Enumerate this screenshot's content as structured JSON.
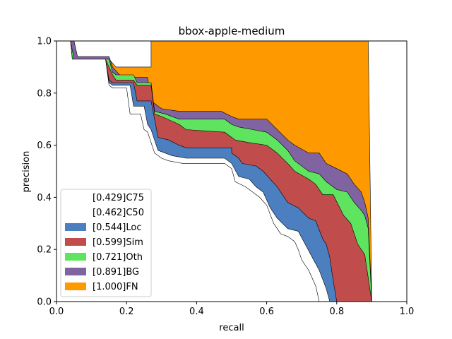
{
  "chart_data": {
    "type": "area",
    "title": "bbox-apple-medium",
    "xlabel": "recall",
    "ylabel": "precision",
    "xlim": [
      0,
      1
    ],
    "ylim": [
      0,
      1
    ],
    "xticks": [
      "0.0",
      "0.2",
      "0.4",
      "0.6",
      "0.8",
      "1.0"
    ],
    "yticks": [
      "0.0",
      "0.2",
      "0.4",
      "0.6",
      "0.8",
      "1.0"
    ],
    "grid": false,
    "legend_position": "lower-left",
    "series": [
      {
        "name": "[0.429]C75",
        "color": "#ffffff",
        "points": [
          [
            0.0,
            1.0
          ],
          [
            0.04,
            1.0
          ],
          [
            0.045,
            0.93
          ],
          [
            0.14,
            0.93
          ],
          [
            0.15,
            0.83
          ],
          [
            0.16,
            0.82
          ],
          [
            0.2,
            0.82
          ],
          [
            0.21,
            0.72
          ],
          [
            0.24,
            0.72
          ],
          [
            0.25,
            0.66
          ],
          [
            0.26,
            0.65
          ],
          [
            0.28,
            0.57
          ],
          [
            0.3,
            0.55
          ],
          [
            0.32,
            0.54
          ],
          [
            0.36,
            0.53
          ],
          [
            0.48,
            0.53
          ],
          [
            0.5,
            0.51
          ],
          [
            0.51,
            0.46
          ],
          [
            0.54,
            0.44
          ],
          [
            0.56,
            0.42
          ],
          [
            0.58,
            0.4
          ],
          [
            0.6,
            0.37
          ],
          [
            0.62,
            0.3
          ],
          [
            0.64,
            0.26
          ],
          [
            0.66,
            0.25
          ],
          [
            0.68,
            0.23
          ],
          [
            0.69,
            0.2
          ],
          [
            0.7,
            0.16
          ],
          [
            0.72,
            0.12
          ],
          [
            0.74,
            0.06
          ],
          [
            0.75,
            0.0
          ]
        ]
      },
      {
        "name": "[0.462]C50",
        "color": "#ffffff",
        "points": [
          [
            0.0,
            1.0
          ],
          [
            0.04,
            1.0
          ],
          [
            0.045,
            0.93
          ],
          [
            0.14,
            0.93
          ],
          [
            0.15,
            0.84
          ],
          [
            0.16,
            0.83
          ],
          [
            0.21,
            0.83
          ],
          [
            0.22,
            0.75
          ],
          [
            0.25,
            0.75
          ],
          [
            0.26,
            0.68
          ],
          [
            0.27,
            0.66
          ],
          [
            0.29,
            0.58
          ],
          [
            0.31,
            0.57
          ],
          [
            0.33,
            0.56
          ],
          [
            0.37,
            0.55
          ],
          [
            0.48,
            0.55
          ],
          [
            0.5,
            0.53
          ],
          [
            0.52,
            0.48
          ],
          [
            0.55,
            0.47
          ],
          [
            0.57,
            0.44
          ],
          [
            0.59,
            0.42
          ],
          [
            0.61,
            0.36
          ],
          [
            0.63,
            0.32
          ],
          [
            0.66,
            0.28
          ],
          [
            0.69,
            0.27
          ],
          [
            0.71,
            0.22
          ],
          [
            0.73,
            0.17
          ],
          [
            0.75,
            0.12
          ],
          [
            0.77,
            0.05
          ],
          [
            0.78,
            0.0
          ]
        ]
      },
      {
        "name": "[0.544]Loc",
        "color": "#4c7fbf",
        "points": [
          [
            0.0,
            1.0
          ],
          [
            0.04,
            1.0
          ],
          [
            0.045,
            0.93
          ],
          [
            0.14,
            0.93
          ],
          [
            0.15,
            0.85
          ],
          [
            0.16,
            0.84
          ],
          [
            0.22,
            0.84
          ],
          [
            0.23,
            0.77
          ],
          [
            0.27,
            0.77
          ],
          [
            0.28,
            0.7
          ],
          [
            0.29,
            0.63
          ],
          [
            0.32,
            0.62
          ],
          [
            0.35,
            0.6
          ],
          [
            0.37,
            0.59
          ],
          [
            0.5,
            0.59
          ],
          [
            0.5,
            0.57
          ],
          [
            0.52,
            0.55
          ],
          [
            0.53,
            0.53
          ],
          [
            0.57,
            0.52
          ],
          [
            0.59,
            0.5
          ],
          [
            0.61,
            0.47
          ],
          [
            0.63,
            0.44
          ],
          [
            0.66,
            0.38
          ],
          [
            0.69,
            0.36
          ],
          [
            0.72,
            0.32
          ],
          [
            0.74,
            0.31
          ],
          [
            0.76,
            0.24
          ],
          [
            0.77,
            0.22
          ],
          [
            0.78,
            0.17
          ],
          [
            0.79,
            0.08
          ],
          [
            0.8,
            0.0
          ]
        ]
      },
      {
        "name": "[0.599]Sim",
        "color": "#c04c4c",
        "points": [
          [
            0.0,
            1.0
          ],
          [
            0.04,
            1.0
          ],
          [
            0.045,
            0.93
          ],
          [
            0.14,
            0.93
          ],
          [
            0.16,
            0.87
          ],
          [
            0.17,
            0.85
          ],
          [
            0.22,
            0.85
          ],
          [
            0.23,
            0.83
          ],
          [
            0.27,
            0.83
          ],
          [
            0.28,
            0.72
          ],
          [
            0.3,
            0.71
          ],
          [
            0.35,
            0.68
          ],
          [
            0.37,
            0.66
          ],
          [
            0.48,
            0.65
          ],
          [
            0.5,
            0.63
          ],
          [
            0.51,
            0.62
          ],
          [
            0.55,
            0.61
          ],
          [
            0.6,
            0.6
          ],
          [
            0.63,
            0.57
          ],
          [
            0.66,
            0.53
          ],
          [
            0.68,
            0.5
          ],
          [
            0.72,
            0.47
          ],
          [
            0.74,
            0.45
          ],
          [
            0.76,
            0.41
          ],
          [
            0.79,
            0.41
          ],
          [
            0.82,
            0.33
          ],
          [
            0.84,
            0.3
          ],
          [
            0.85,
            0.26
          ],
          [
            0.86,
            0.22
          ],
          [
            0.88,
            0.18
          ],
          [
            0.9,
            0.0
          ]
        ]
      },
      {
        "name": "[0.721]Oth",
        "color": "#5ee45e",
        "points": [
          [
            0.0,
            1.0
          ],
          [
            0.04,
            1.0
          ],
          [
            0.05,
            0.93
          ],
          [
            0.15,
            0.93
          ],
          [
            0.16,
            0.88
          ],
          [
            0.17,
            0.87
          ],
          [
            0.22,
            0.87
          ],
          [
            0.23,
            0.84
          ],
          [
            0.27,
            0.84
          ],
          [
            0.28,
            0.73
          ],
          [
            0.31,
            0.72
          ],
          [
            0.35,
            0.7
          ],
          [
            0.37,
            0.7
          ],
          [
            0.48,
            0.7
          ],
          [
            0.5,
            0.68
          ],
          [
            0.52,
            0.67
          ],
          [
            0.56,
            0.66
          ],
          [
            0.6,
            0.65
          ],
          [
            0.63,
            0.62
          ],
          [
            0.66,
            0.58
          ],
          [
            0.68,
            0.54
          ],
          [
            0.72,
            0.5
          ],
          [
            0.75,
            0.49
          ],
          [
            0.77,
            0.46
          ],
          [
            0.8,
            0.43
          ],
          [
            0.83,
            0.42
          ],
          [
            0.85,
            0.38
          ],
          [
            0.87,
            0.35
          ],
          [
            0.88,
            0.33
          ],
          [
            0.89,
            0.28
          ],
          [
            0.9,
            0.0
          ]
        ]
      },
      {
        "name": "[0.891]BG",
        "color": "#8064a2",
        "points": [
          [
            0.0,
            1.0
          ],
          [
            0.05,
            1.0
          ],
          [
            0.06,
            0.94
          ],
          [
            0.15,
            0.94
          ],
          [
            0.16,
            0.9
          ],
          [
            0.18,
            0.87
          ],
          [
            0.22,
            0.86
          ],
          [
            0.26,
            0.86
          ],
          [
            0.27,
            0.77
          ],
          [
            0.3,
            0.74
          ],
          [
            0.35,
            0.73
          ],
          [
            0.38,
            0.73
          ],
          [
            0.47,
            0.73
          ],
          [
            0.5,
            0.71
          ],
          [
            0.52,
            0.7
          ],
          [
            0.55,
            0.7
          ],
          [
            0.6,
            0.7
          ],
          [
            0.63,
            0.66
          ],
          [
            0.66,
            0.62
          ],
          [
            0.68,
            0.6
          ],
          [
            0.72,
            0.57
          ],
          [
            0.75,
            0.57
          ],
          [
            0.77,
            0.53
          ],
          [
            0.8,
            0.51
          ],
          [
            0.83,
            0.49
          ],
          [
            0.85,
            0.45
          ],
          [
            0.87,
            0.42
          ],
          [
            0.88,
            0.38
          ],
          [
            0.89,
            0.32
          ],
          [
            0.9,
            0.0
          ]
        ]
      },
      {
        "name": "[1.000]FN",
        "color": "#ff9900",
        "points": [
          [
            0.0,
            1.0
          ],
          [
            0.05,
            1.0
          ],
          [
            0.055,
            0.96
          ],
          [
            0.06,
            0.93
          ],
          [
            0.15,
            0.93
          ],
          [
            0.17,
            0.9
          ],
          [
            0.27,
            0.9
          ],
          [
            0.27,
            1.0
          ],
          [
            0.89,
            1.0
          ],
          [
            0.9,
            0.0
          ]
        ]
      }
    ]
  }
}
